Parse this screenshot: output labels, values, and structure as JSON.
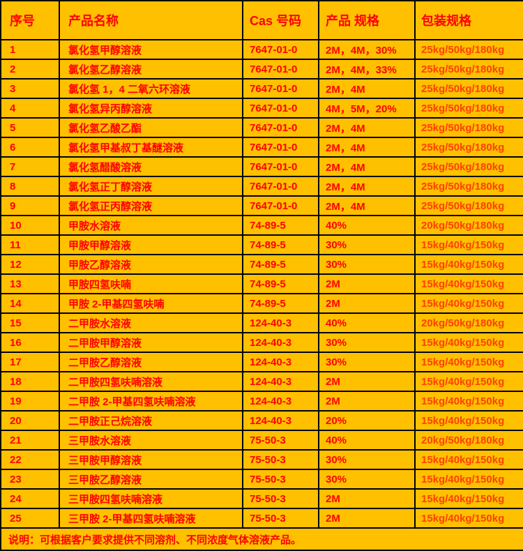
{
  "colors": {
    "table_bg": "#FFC000",
    "text_red": "#FF0000",
    "package_text": "#FF4000",
    "border": "#000000"
  },
  "table": {
    "headers": [
      "序号",
      "产品名称",
      "Cas 号码",
      "产品 规格",
      "包装规格"
    ],
    "rows": [
      [
        "1",
        "氯化氢甲醇溶液",
        "7647-01-0",
        "2M，4M，30%",
        "25kg/50kg/180kg"
      ],
      [
        "2",
        "氯化氢乙醇溶液",
        "7647-01-0",
        "2M，4M，33%",
        "25kg/50kg/180kg"
      ],
      [
        "3",
        "氯化氢 1，4 二氧六环溶液",
        "7647-01-0",
        "2M，4M",
        "25kg/50kg/180kg"
      ],
      [
        "4",
        "氯化氢异丙醇溶液",
        "7647-01-0",
        "4M，5M，20%",
        "25kg/50kg/180kg"
      ],
      [
        "5",
        "氯化氢乙酸乙酯",
        "7647-01-0",
        "2M，4M",
        "25kg/50kg/180kg"
      ],
      [
        "6",
        "氯化氢甲基叔丁基醚溶液",
        "7647-01-0",
        "2M，4M",
        "25kg/50kg/180kg"
      ],
      [
        "7",
        "氯化氢醋酸溶液",
        "7647-01-0",
        "2M，4M",
        "25kg/50kg/180kg"
      ],
      [
        "8",
        "氯化氢正丁醇溶液",
        "7647-01-0",
        "2M，4M",
        "25kg/50kg/180kg"
      ],
      [
        "9",
        "氯化氢正丙醇溶液",
        "7647-01-0",
        "2M，4M",
        "25kg/50kg/180kg"
      ],
      [
        "10",
        "甲胺水溶液",
        "74-89-5",
        "40%",
        "20kg/50kg/180kg"
      ],
      [
        "11",
        "甲胺甲醇溶液",
        "74-89-5",
        "30%",
        "15kg/40kg/150kg"
      ],
      [
        "12",
        "甲胺乙醇溶液",
        "74-89-5",
        "30%",
        "15kg/40kg/150kg"
      ],
      [
        "13",
        "甲胺四氢呋喃",
        "74-89-5",
        "2M",
        "15kg/40kg/150kg"
      ],
      [
        "14",
        "甲胺 2-甲基四氢呋喃",
        "74-89-5",
        "2M",
        "15kg/40kg/150kg"
      ],
      [
        "15",
        "二甲胺水溶液",
        "124-40-3",
        "40%",
        "20kg/50kg/180kg"
      ],
      [
        "16",
        "二甲胺甲醇溶液",
        "124-40-3",
        "30%",
        "15kg/40kg/150kg"
      ],
      [
        "17",
        "二甲胺乙醇溶液",
        "124-40-3",
        "30%",
        "15kg/40kg/150kg"
      ],
      [
        "18",
        "二甲胺四氢呋喃溶液",
        "124-40-3",
        "2M",
        "15kg/40kg/150kg"
      ],
      [
        "19",
        "二甲胺 2-甲基四氢呋喃溶液",
        "124-40-3",
        "2M",
        "15kg/40kg/150kg"
      ],
      [
        "20",
        "二甲胺正己烷溶液",
        "124-40-3",
        "20%",
        "15kg/40kg/150kg"
      ],
      [
        "21",
        "三甲胺水溶液",
        "75-50-3",
        "40%",
        "20kg/50kg/180kg"
      ],
      [
        "22",
        "三甲胺甲醇溶液",
        "75-50-3",
        "30%",
        "15kg/40kg/150kg"
      ],
      [
        "23",
        "三甲胺乙醇溶液",
        "75-50-3",
        "30%",
        "15kg/40kg/150kg"
      ],
      [
        "24",
        "三甲胺四氢呋喃溶液",
        "75-50-3",
        "2M",
        "15kg/40kg/150kg"
      ],
      [
        "25",
        "三甲胺 2-甲基四氢呋喃溶液",
        "75-50-3",
        "2M",
        "15kg/40kg/150kg"
      ]
    ],
    "footer_note": "说明：可根据客户要求提供不同溶剂、不同浓度气体溶液产品。"
  }
}
